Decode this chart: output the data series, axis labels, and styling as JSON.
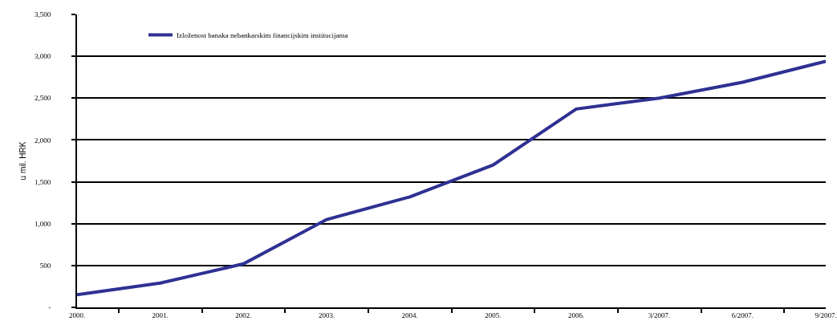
{
  "chart_data": {
    "type": "line",
    "ylabel": "u mil. HRK",
    "categories": [
      "2000.",
      "2001.",
      "2002.",
      "2003.",
      "2004.",
      "2005.",
      "2006.",
      "3/2007.",
      "6/2007.",
      "9/2007."
    ],
    "series": [
      {
        "name": "Izloženost banaka nebankarskim financijskim institucijama",
        "color": "#2e3192",
        "values": [
          150,
          290,
          520,
          1050,
          1320,
          1700,
          2370,
          2500,
          2690,
          2940
        ]
      }
    ],
    "ylim": [
      0,
      3500
    ],
    "yticks": [
      {
        "value": 0,
        "label": "-"
      },
      500,
      {
        "value": 1000,
        "label": "1,000"
      },
      {
        "value": 1500,
        "label": "1,500"
      },
      {
        "value": 2000,
        "label": "2,000"
      },
      {
        "value": 2500,
        "label": "2,500"
      },
      {
        "value": 3000,
        "label": "3,000"
      },
      {
        "value": 3500,
        "label": "3,500"
      }
    ],
    "grid": "y",
    "legend": "top left"
  }
}
